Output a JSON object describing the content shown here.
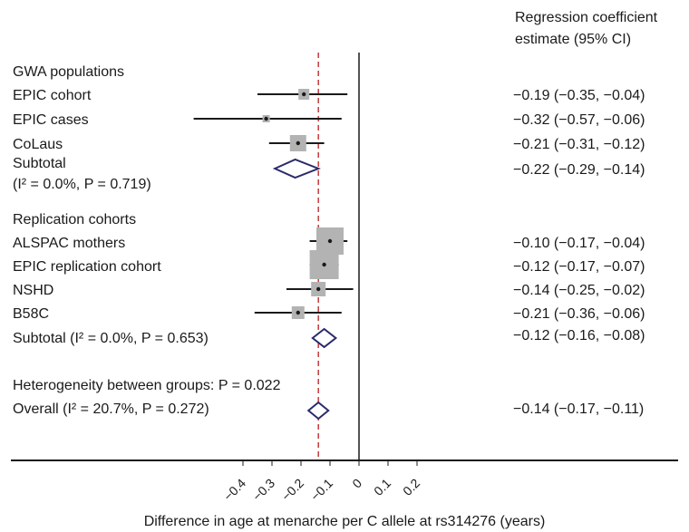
{
  "chart_data": {
    "type": "forest",
    "header_line1": "Regression coefficient",
    "header_line2": "estimate (95% CI)",
    "xlabel": "Difference in age at menarche per C allele at rs314276 (years)",
    "xticks": [
      "-0.4",
      "-0.3",
      "-0.2",
      "-0.1",
      "0",
      "0.1",
      "0.2"
    ],
    "xlim": [
      -0.45,
      0.2
    ],
    "overall_effect_line": -0.14,
    "groups": [
      {
        "title": "GWA populations",
        "studies": [
          {
            "name": "EPIC cohort",
            "estimate": -0.19,
            "ci": [
              -0.35,
              -0.04
            ],
            "label": "−0.19 (−0.35, −0.04)"
          },
          {
            "name": "EPIC cases",
            "estimate": -0.32,
            "ci": [
              -0.57,
              -0.06
            ],
            "label": "−0.32 (−0.57, −0.06)"
          },
          {
            "name": "CoLaus",
            "estimate": -0.21,
            "ci": [
              -0.31,
              -0.12
            ],
            "label": "−0.21 (−0.31, −0.12)"
          }
        ],
        "subtotal": {
          "line1": "Subtotal",
          "line2": "(I² = 0.0%, P = 0.719)",
          "estimate": -0.22,
          "ci": [
            -0.29,
            -0.14
          ],
          "label": "−0.22 (−0.29, −0.14)"
        }
      },
      {
        "title": "Replication cohorts",
        "studies": [
          {
            "name": "ALSPAC mothers",
            "estimate": -0.1,
            "ci": [
              -0.17,
              -0.04
            ],
            "label": "−0.10 (−0.17, −0.04)"
          },
          {
            "name": "EPIC replication cohort",
            "estimate": -0.12,
            "ci": [
              -0.17,
              -0.07
            ],
            "label": "−0.12 (−0.17, −0.07)"
          },
          {
            "name": "NSHD",
            "estimate": -0.14,
            "ci": [
              -0.25,
              -0.02
            ],
            "label": "−0.14 (−0.25, −0.02)"
          },
          {
            "name": "B58C",
            "estimate": -0.21,
            "ci": [
              -0.36,
              -0.06
            ],
            "label": "−0.21 (−0.36, −0.06)"
          }
        ],
        "subtotal": {
          "line1": "Subtotal (I² = 0.0%, P = 0.653)",
          "estimate": -0.12,
          "ci": [
            -0.16,
            -0.08
          ],
          "label": "−0.12 (−0.16, −0.08)"
        }
      }
    ],
    "heterogeneity": "Heterogeneity between groups: P = 0.022",
    "overall": {
      "name": "Overall (I² = 20.7%, P = 0.272)",
      "estimate": -0.14,
      "ci": [
        -0.17,
        -0.11
      ],
      "label": "−0.14 (−0.17, −0.11)"
    },
    "colors": {
      "box": "#b3b3b3",
      "diamond": "#2b2a6b",
      "overall_line": "#c23b3b",
      "axis": "#1a1a1a"
    }
  }
}
